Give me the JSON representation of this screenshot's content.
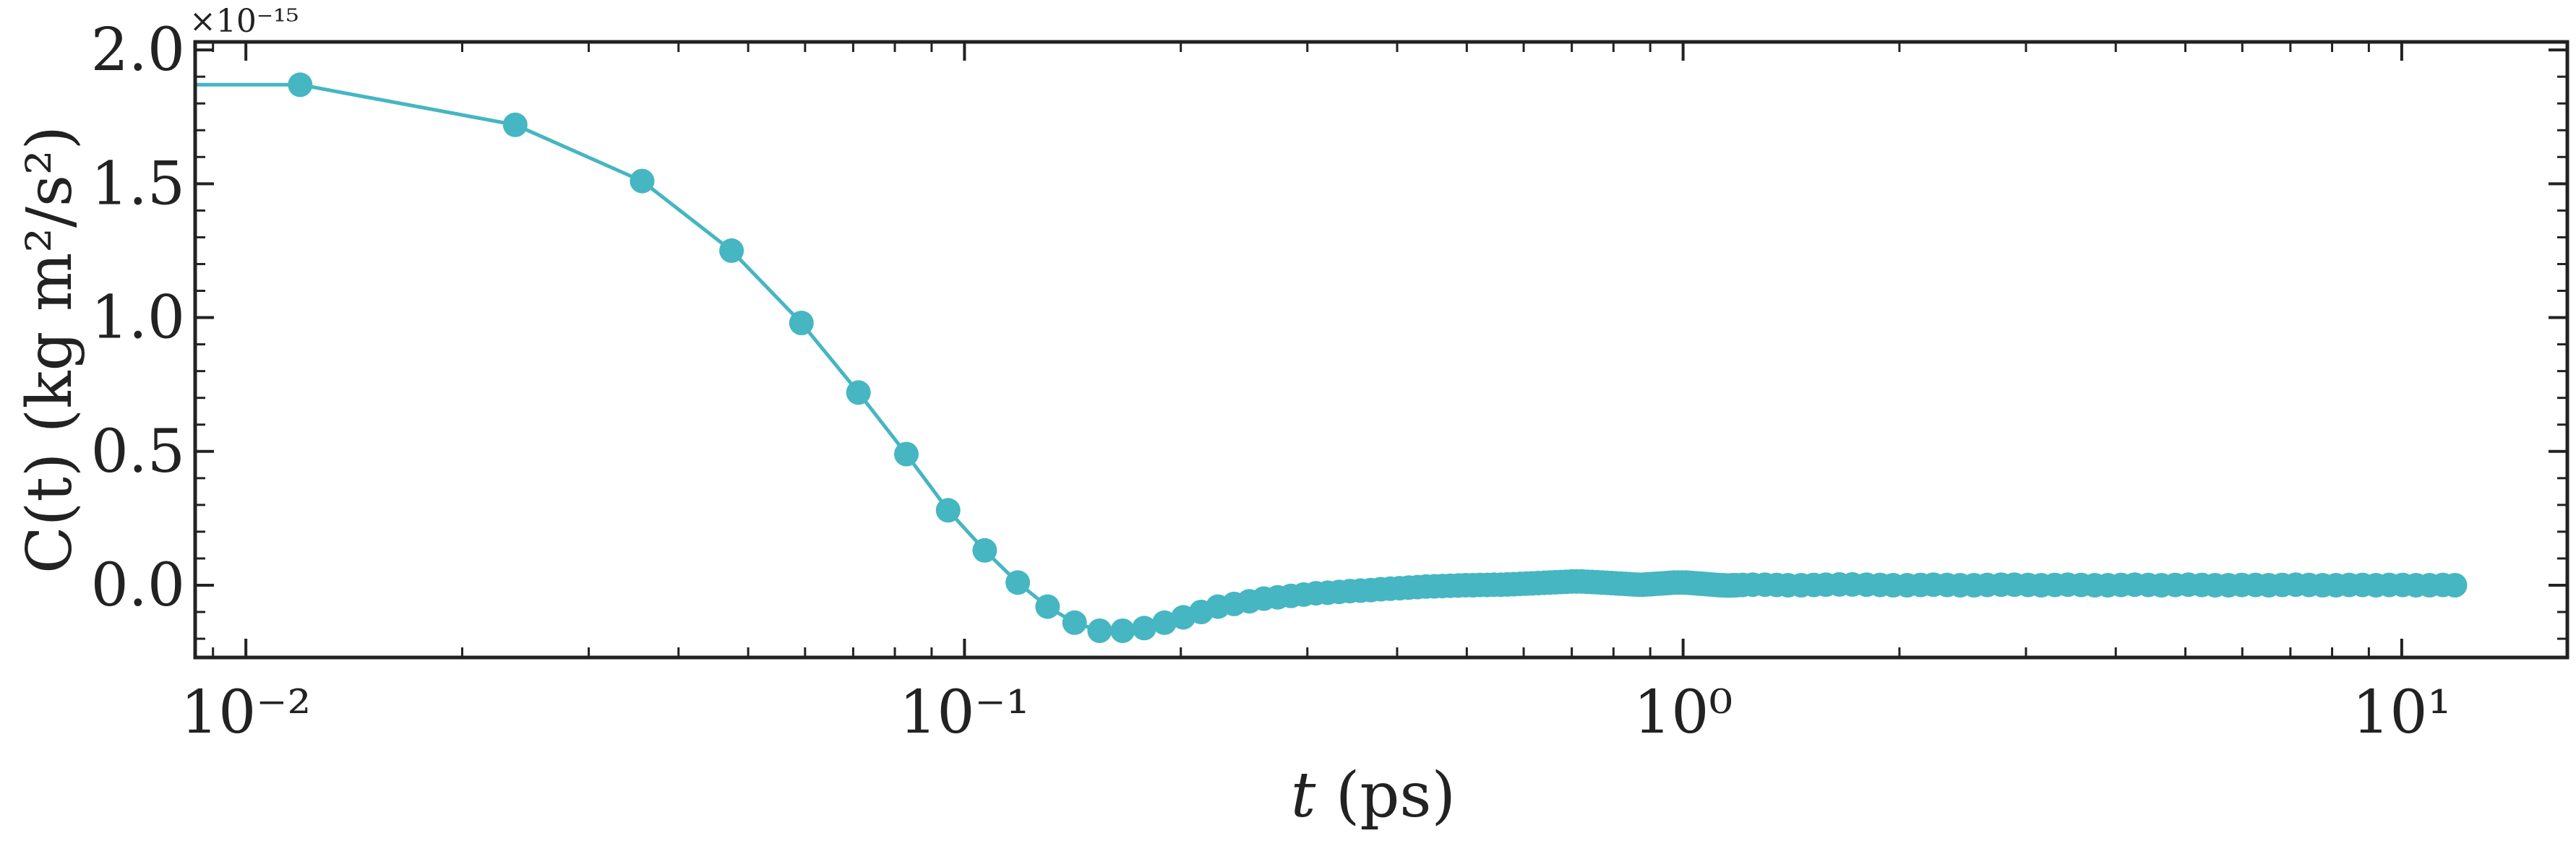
{
  "chart_data": {
    "type": "line",
    "xlabel_var": "t",
    "xlabel_unit": " (ps)",
    "ylabel_text": "C(t) (kg m²/s²)",
    "y_multiplier": "×10⁻¹⁵",
    "x_scale": "log",
    "xlim": [
      0.0085,
      17
    ],
    "ylim": [
      -0.27,
      2.03
    ],
    "x_ticks": [
      {
        "value": 0.01,
        "label": "10⁻²"
      },
      {
        "value": 0.1,
        "label": "10⁻¹"
      },
      {
        "value": 1,
        "label": "10⁰"
      },
      {
        "value": 10,
        "label": "10¹"
      }
    ],
    "y_ticks": [
      {
        "value": 0.0,
        "label": "0.0"
      },
      {
        "value": 0.5,
        "label": "0.5"
      },
      {
        "value": 1.0,
        "label": "1.0"
      },
      {
        "value": 1.5,
        "label": "1.5"
      },
      {
        "value": 2.0,
        "label": "2.0"
      }
    ],
    "grid": false,
    "legend": "none",
    "series": [
      {
        "color": "#45b6c2",
        "marker": "circle",
        "line_start": {
          "x": 0.0085,
          "y": 1.87
        },
        "x": [
          0.0119,
          0.0237,
          0.0356,
          0.0474,
          0.0593,
          0.0712,
          0.083,
          0.0949,
          0.1067,
          0.1186,
          0.1305,
          0.1423,
          0.1542,
          0.166,
          0.1779,
          0.1898,
          0.2016,
          0.2135,
          0.2253,
          0.2372,
          0.2491,
          0.2609,
          0.2728,
          0.2846,
          0.2965,
          0.3084,
          0.3202,
          0.3321,
          0.3439,
          0.3558,
          0.3677,
          0.3795,
          0.3914,
          0.4032,
          0.4151,
          0.427,
          0.4388,
          0.4507,
          0.4625,
          0.4744,
          0.4863,
          0.4981,
          0.51,
          0.5218,
          0.5337,
          0.5456,
          0.5574,
          0.5693,
          0.5811,
          0.593,
          0.6049,
          0.6167,
          0.6286,
          0.6404,
          0.6523,
          0.6642,
          0.676,
          0.6879,
          0.6997,
          0.7116,
          0.7235,
          0.7353,
          0.7472,
          0.759,
          0.7709,
          0.7828,
          0.7946,
          0.8065,
          0.8183,
          0.8302,
          0.8421,
          0.8539,
          0.8658,
          0.8776,
          0.8895,
          0.9014,
          0.9132,
          0.9251,
          0.9369,
          0.9488,
          0.9607,
          0.9725,
          0.9844,
          0.9962,
          1.0081,
          1.02,
          1.0318,
          1.0437,
          1.0555,
          1.0674,
          1.0793,
          1.0911,
          1.103,
          1.1148,
          1.1267,
          1.1386,
          1.1504,
          1.1623,
          1.1741,
          1.186,
          1.21,
          1.25,
          1.3,
          1.35,
          1.4,
          1.46,
          1.52,
          1.58,
          1.65,
          1.72,
          1.8,
          1.88,
          1.96,
          2.05,
          2.14,
          2.23,
          2.33,
          2.43,
          2.54,
          2.65,
          2.77,
          2.89,
          3.02,
          3.15,
          3.29,
          3.43,
          3.58,
          3.74,
          3.9,
          4.07,
          4.25,
          4.44,
          4.63,
          4.84,
          5.05,
          5.27,
          5.5,
          5.74,
          5.99,
          6.26,
          6.53,
          6.82,
          7.12,
          7.43,
          7.76,
          8.1,
          8.45,
          8.82,
          9.21,
          9.61,
          10.03,
          10.47,
          10.93,
          11.41,
          11.86
        ],
        "y": [
          1.87,
          1.72,
          1.51,
          1.25,
          0.98,
          0.72,
          0.49,
          0.28,
          0.13,
          0.01,
          -0.08,
          -0.14,
          -0.17,
          -0.17,
          -0.16,
          -0.14,
          -0.12,
          -0.1,
          -0.08,
          -0.07,
          -0.06,
          -0.05,
          -0.045,
          -0.04,
          -0.035,
          -0.03,
          -0.028,
          -0.025,
          -0.022,
          -0.02,
          -0.018,
          -0.015,
          -0.013,
          -0.011,
          -0.009,
          -0.007,
          -0.005,
          -0.004,
          -0.003,
          -0.002,
          -0.001,
          0.0,
          0.0,
          0.001,
          0.001,
          0.002,
          0.002,
          0.003,
          0.004,
          0.005,
          0.006,
          0.007,
          0.008,
          0.009,
          0.01,
          0.011,
          0.012,
          0.013,
          0.014,
          0.014,
          0.014,
          0.013,
          0.012,
          0.011,
          0.01,
          0.009,
          0.008,
          0.007,
          0.006,
          0.005,
          0.004,
          0.003,
          0.002,
          0.002,
          0.003,
          0.004,
          0.005,
          0.006,
          0.007,
          0.008,
          0.009,
          0.01,
          0.01,
          0.01,
          0.01,
          0.009,
          0.008,
          0.007,
          0.006,
          0.005,
          0.004,
          0.003,
          0.002,
          0.001,
          0.0,
          0.0,
          -0.001,
          -0.001,
          0.0,
          0.0,
          0.001,
          0.002,
          0.002,
          0.001,
          0.0,
          0.0,
          0.001,
          0.002,
          0.003,
          0.003,
          0.002,
          0.001,
          0.0,
          0.0,
          0.001,
          0.002,
          0.001,
          0.0,
          0.0,
          0.001,
          0.002,
          0.002,
          0.001,
          0.0,
          0.001,
          0.002,
          0.001,
          0.0,
          0.0,
          0.001,
          0.002,
          0.001,
          0.0,
          0.001,
          0.002,
          0.001,
          0.0,
          0.0,
          0.001,
          0.001,
          0.0,
          0.001,
          0.002,
          0.001,
          0.0,
          0.0,
          0.001,
          0.001,
          0.0,
          0.001,
          0.001,
          0.0,
          0.0,
          0.001,
          0.0
        ]
      }
    ]
  }
}
